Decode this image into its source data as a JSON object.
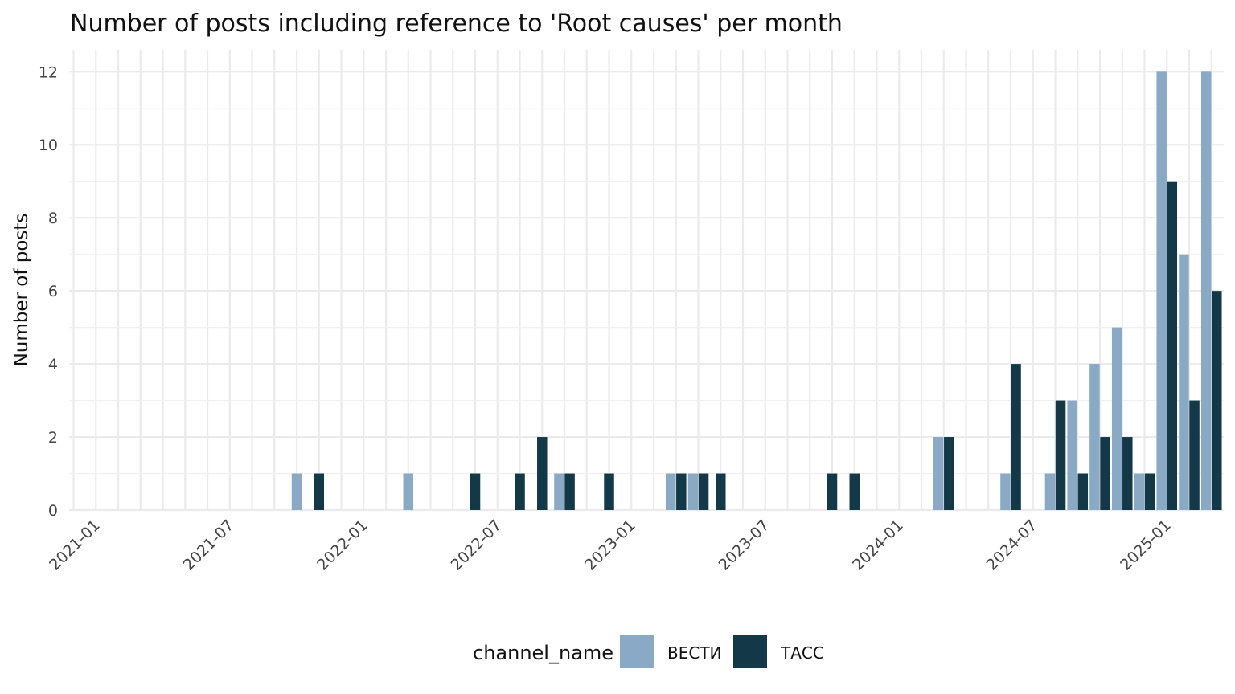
{
  "chart_data": {
    "type": "bar",
    "title": "Number of posts including reference to 'Root causes' per month",
    "xlabel": "",
    "ylabel": "Number of posts",
    "ylim": [
      0,
      12.6
    ],
    "yticks": [
      0,
      2,
      4,
      6,
      8,
      10,
      12
    ],
    "xlim": [
      "2020-12",
      "2025-03"
    ],
    "xticks": [
      "2021-01",
      "2021-07",
      "2022-01",
      "2022-07",
      "2023-01",
      "2023-07",
      "2024-01",
      "2024-07",
      "2025-01"
    ],
    "grid": true,
    "legend_position": "bottom",
    "legend_title": "channel_name",
    "series": [
      {
        "name": "ВЕСТИ",
        "color": "#8aa9c5",
        "points": [
          {
            "x": "2021-10",
            "y": 1
          },
          {
            "x": "2022-03",
            "y": 1
          },
          {
            "x": "2022-10",
            "y": 1
          },
          {
            "x": "2023-03",
            "y": 1
          },
          {
            "x": "2023-04",
            "y": 1
          },
          {
            "x": "2024-03",
            "y": 2
          },
          {
            "x": "2024-06",
            "y": 1
          },
          {
            "x": "2024-08",
            "y": 1
          },
          {
            "x": "2024-09",
            "y": 3
          },
          {
            "x": "2024-10",
            "y": 4
          },
          {
            "x": "2024-11",
            "y": 5
          },
          {
            "x": "2024-12",
            "y": 1
          },
          {
            "x": "2025-01",
            "y": 12
          },
          {
            "x": "2025-02",
            "y": 7
          },
          {
            "x": "2025-03",
            "y": 12
          }
        ]
      },
      {
        "name": "ТАСС",
        "color": "#133848",
        "points": [
          {
            "x": "2021-11",
            "y": 1
          },
          {
            "x": "2022-06",
            "y": 1
          },
          {
            "x": "2022-08",
            "y": 1
          },
          {
            "x": "2022-09",
            "y": 2
          },
          {
            "x": "2022-10",
            "y": 1
          },
          {
            "x": "2022-12",
            "y": 1
          },
          {
            "x": "2023-03",
            "y": 1
          },
          {
            "x": "2023-04",
            "y": 1
          },
          {
            "x": "2023-05",
            "y": 1
          },
          {
            "x": "2023-10",
            "y": 1
          },
          {
            "x": "2023-11",
            "y": 1
          },
          {
            "x": "2024-03",
            "y": 2
          },
          {
            "x": "2024-06",
            "y": 4
          },
          {
            "x": "2024-08",
            "y": 3
          },
          {
            "x": "2024-09",
            "y": 1
          },
          {
            "x": "2024-10",
            "y": 2
          },
          {
            "x": "2024-11",
            "y": 2
          },
          {
            "x": "2024-12",
            "y": 1
          },
          {
            "x": "2025-01",
            "y": 9
          },
          {
            "x": "2025-02",
            "y": 3
          },
          {
            "x": "2025-03",
            "y": 6
          }
        ]
      }
    ]
  }
}
